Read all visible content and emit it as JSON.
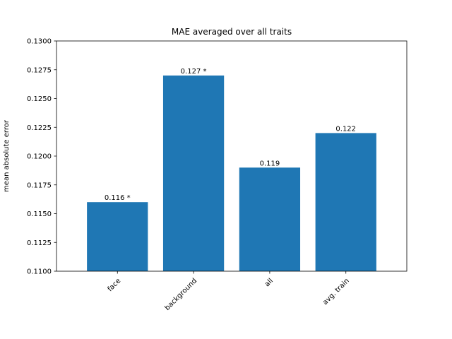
{
  "chart_data": {
    "type": "bar",
    "title": "MAE averaged over all traits",
    "xlabel": "",
    "ylabel": "mean absolute error",
    "categories": [
      "face",
      "background",
      "all",
      "avg. train"
    ],
    "values": [
      0.116,
      0.127,
      0.119,
      0.122
    ],
    "data_labels": [
      "0.116 *",
      "0.127 *",
      "0.119",
      "0.122"
    ],
    "ylim": [
      0.11,
      0.13
    ],
    "yticks": [
      "0.1100",
      "0.1125",
      "0.1150",
      "0.1175",
      "0.1200",
      "0.1225",
      "0.1250",
      "0.1275",
      "0.1300"
    ],
    "tick_rotation_deg": 45,
    "grid": false,
    "bar_color": "#1f77b4"
  }
}
